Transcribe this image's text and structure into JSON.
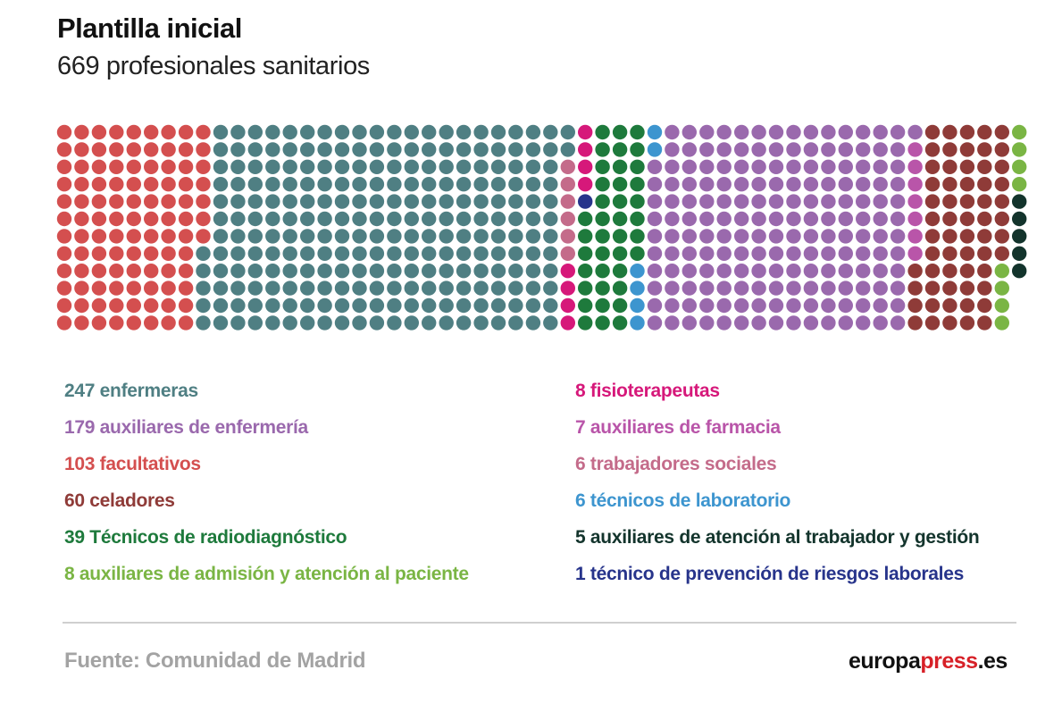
{
  "chart_data": {
    "type": "waffle",
    "title": "Plantilla inicial",
    "subtitle": "669 profesionales sanitarios",
    "total": 669,
    "series": [
      {
        "name": "247 enfermeras",
        "value": 247,
        "color": "#4f7f83"
      },
      {
        "name": "179 auxiliares de enfermería",
        "value": 179,
        "color": "#9a69ad"
      },
      {
        "name": "103 facultativos",
        "value": 103,
        "color": "#d44f4f"
      },
      {
        "name": "60 celadores",
        "value": 60,
        "color": "#8f3b38"
      },
      {
        "name": "39 Técnicos de radiodiagnóstico",
        "value": 39,
        "color": "#1e7a3c"
      },
      {
        "name": "8 auxiliares de admisión y atención al paciente",
        "value": 8,
        "color": "#7ab544"
      },
      {
        "name": "8 fisioterapeutas",
        "value": 8,
        "color": "#d6187a"
      },
      {
        "name": "7 auxiliares de farmacia",
        "value": 7,
        "color": "#b955a9"
      },
      {
        "name": "6 trabajadores sociales",
        "value": 6,
        "color": "#c46b8a"
      },
      {
        "name": "6 técnicos de laboratorio",
        "value": 6,
        "color": "#3d95cf"
      },
      {
        "name": "5 auxiliares de atención al trabajador y gestión",
        "value": 5,
        "color": "#13342c"
      },
      {
        "name": "1 técnico de prevención de riesgos laborales",
        "value": 1,
        "color": "#27348b"
      }
    ]
  },
  "footer": {
    "source": "Fuente: Comunidad de Madrid",
    "brand_part1": "europa",
    "brand_part2": "press",
    "brand_part3": ".es"
  }
}
